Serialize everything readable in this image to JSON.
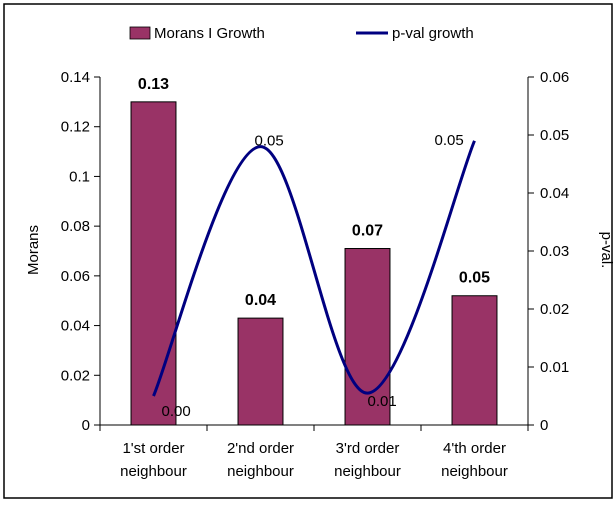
{
  "chart_data": {
    "type": "bar+line",
    "categories": [
      [
        "1'st order",
        "neighbour"
      ],
      [
        "2'nd order",
        "neighbour"
      ],
      [
        "3'rd order",
        "neighbour"
      ],
      [
        "4'th order",
        "neighbour"
      ]
    ],
    "series": [
      {
        "name": "Morans I Growth",
        "kind": "bar",
        "axis": "left",
        "color": "#993366",
        "values": [
          0.13,
          0.043,
          0.071,
          0.052
        ],
        "labels": [
          "0.13",
          "0.04",
          "0.07",
          "0.05"
        ]
      },
      {
        "name": "p-val growth",
        "kind": "line",
        "axis": "right",
        "color": "#000080",
        "values": [
          0.005,
          0.048,
          0.0055,
          0.049
        ],
        "labels": [
          "0.00",
          "0.05",
          "0.01",
          "0.05"
        ]
      }
    ],
    "ylabel": "Morans",
    "y2label": "p-val.",
    "ylim": [
      0,
      0.14
    ],
    "yticks": [
      "0",
      "0.02",
      "0.04",
      "0.06",
      "0.08",
      "0.1",
      "0.12",
      "0.14"
    ],
    "y2lim": [
      0,
      0.06
    ],
    "y2ticks": [
      "0",
      "0.01",
      "0.02",
      "0.03",
      "0.04",
      "0.05",
      "0.06"
    ],
    "legend": "top-center",
    "grid": false
  }
}
